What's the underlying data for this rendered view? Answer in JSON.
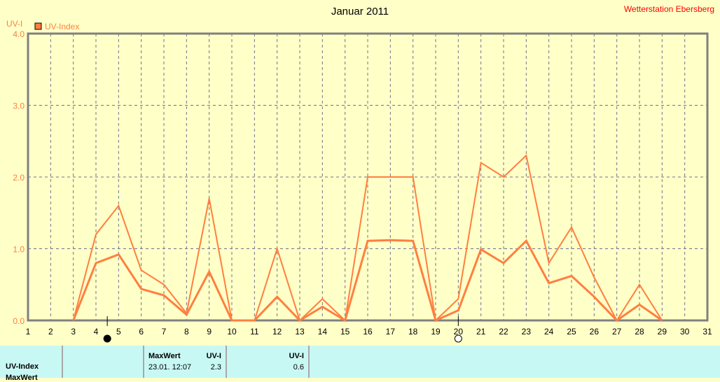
{
  "chart_data": {
    "type": "line",
    "title": "Januar 2011",
    "station": "Wetterstation Ebersberg",
    "ylabel": "UV-I",
    "legend": [
      {
        "label": "UV-Index",
        "color": "#ff7f40"
      }
    ],
    "ylim": [
      0,
      4
    ],
    "yticks": [
      "0.0",
      "1.0",
      "2.0",
      "3.0",
      "4.0"
    ],
    "x": [
      1,
      2,
      3,
      4,
      5,
      6,
      7,
      8,
      9,
      10,
      11,
      12,
      13,
      14,
      15,
      16,
      17,
      18,
      19,
      20,
      21,
      22,
      23,
      24,
      25,
      26,
      27,
      28,
      29,
      30,
      31
    ],
    "series": [
      {
        "name": "UV-Index max",
        "values": [
          null,
          null,
          0,
          1.2,
          1.6,
          0.7,
          0.5,
          0.1,
          1.7,
          0,
          0,
          1.0,
          0,
          0.3,
          0,
          2.0,
          2.0,
          2.0,
          0,
          0.3,
          2.2,
          2.0,
          2.3,
          0.8,
          1.3,
          0.6,
          0,
          0.5,
          0,
          null,
          null
        ]
      },
      {
        "name": "UV-Index mean",
        "values": [
          null,
          null,
          0,
          0.8,
          0.92,
          0.44,
          0.35,
          0.08,
          0.68,
          0,
          0,
          0.33,
          0,
          0.19,
          0,
          1.11,
          1.12,
          1.11,
          0,
          0.14,
          0.99,
          0.8,
          1.11,
          0.52,
          0.62,
          0.33,
          0,
          0.22,
          0,
          null,
          null
        ]
      }
    ],
    "markers": [
      {
        "day": 4.5,
        "type": "full-moon"
      },
      {
        "day": 20,
        "type": "new-moon"
      }
    ],
    "grid": true,
    "legend_position": "top-left"
  },
  "table": {
    "row_label": "UV-Index",
    "row_label2": "MaxWert",
    "max_header": "MaxWert",
    "unit_header": "UV-I",
    "max_date": "23.01.  12:07",
    "max_value": "2.3",
    "avg_header": "UV-I",
    "avg_value": "0.6"
  }
}
